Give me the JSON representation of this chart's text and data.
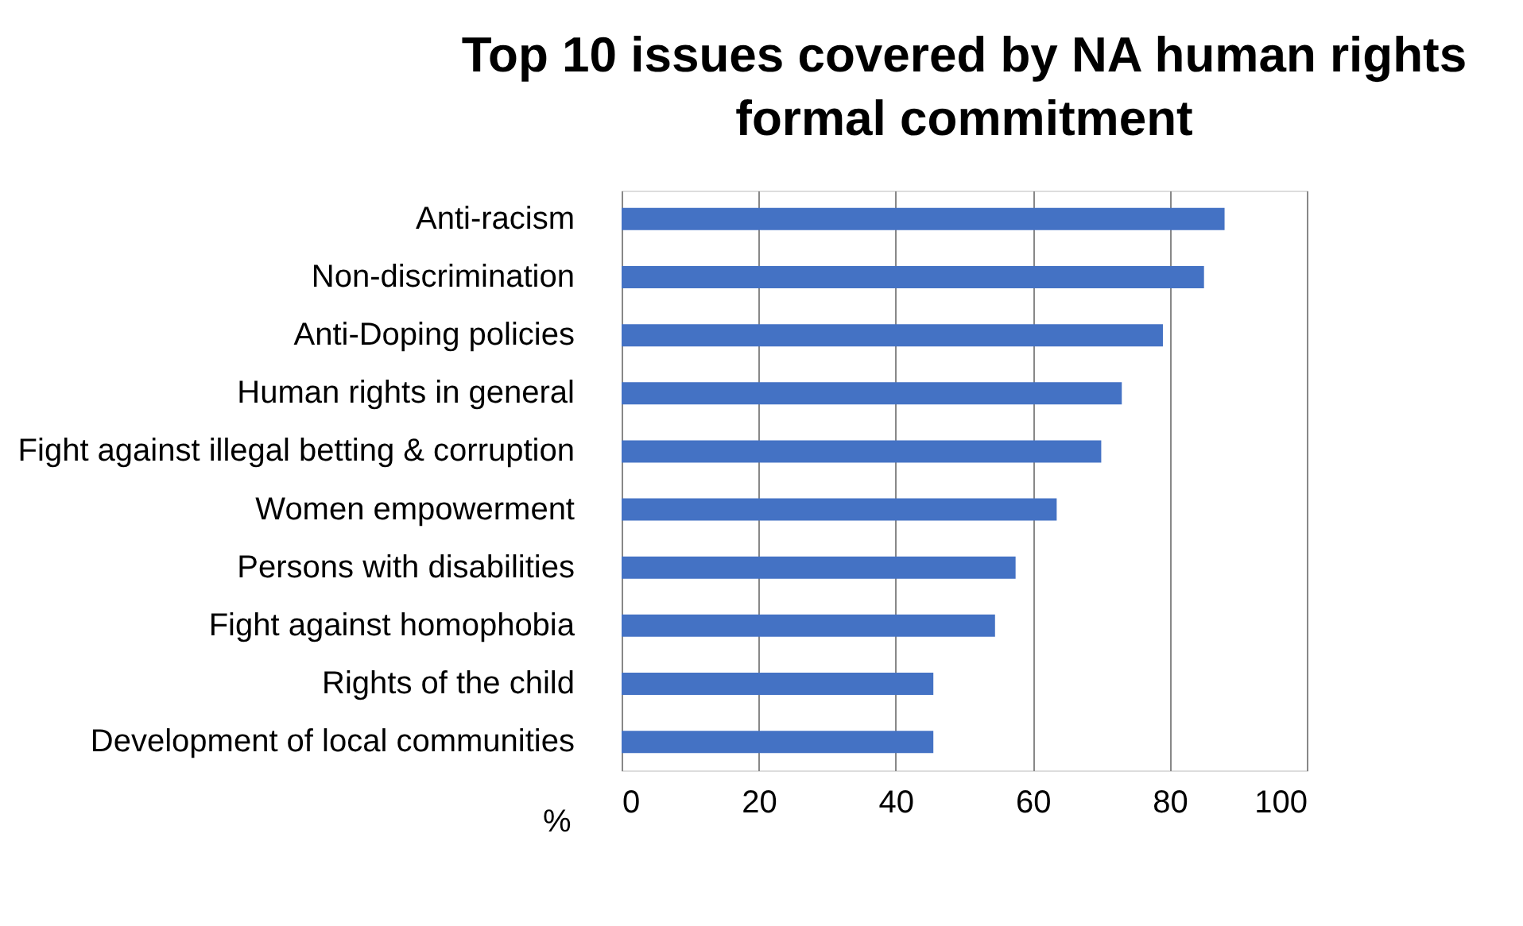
{
  "chart_data": {
    "type": "bar",
    "orientation": "horizontal",
    "title": "Top 10 issues covered by NA human rights formal commitment",
    "xlabel": "%",
    "categories": [
      "Anti-racism",
      "Non-discrimination",
      "Anti-Doping policies",
      "Human rights in general",
      "Fight against illegal betting & corruption",
      "Women empowerment",
      "Persons with disabilities",
      "Fight against homophobia",
      "Rights of the child",
      "Development of local communities"
    ],
    "values": [
      88,
      85,
      79,
      73,
      70,
      63.5,
      57.5,
      54.5,
      45.5,
      45.5
    ],
    "color": "#4472c4",
    "xlim": [
      0,
      100
    ],
    "xticks": [
      0,
      20,
      40,
      60,
      80,
      100
    ],
    "grid": "x"
  }
}
